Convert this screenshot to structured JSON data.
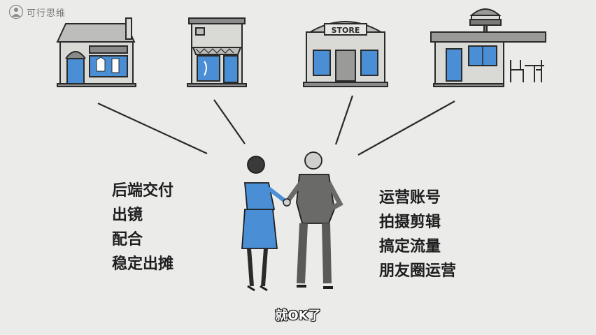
{
  "logo": {
    "text": "可行思维",
    "icon": "person-thinking-icon"
  },
  "shops": [
    {
      "name": "clothing-shop"
    },
    {
      "name": "boutique-shop"
    },
    {
      "name": "store",
      "sign": "STORE"
    },
    {
      "name": "burger-cafe"
    }
  ],
  "left_list": [
    "后端交付",
    "出镜",
    "配合",
    "稳定出摊"
  ],
  "right_list": [
    "运营账号",
    "拍摄剪辑",
    "搞定流量",
    "朋友圈运营"
  ],
  "subtitle": "就OK了",
  "colors": {
    "background": "#ebebea",
    "accent_blue": "#4a8fd6",
    "ink": "#2a2a2a",
    "shop_wall": "#d9d9d6"
  }
}
